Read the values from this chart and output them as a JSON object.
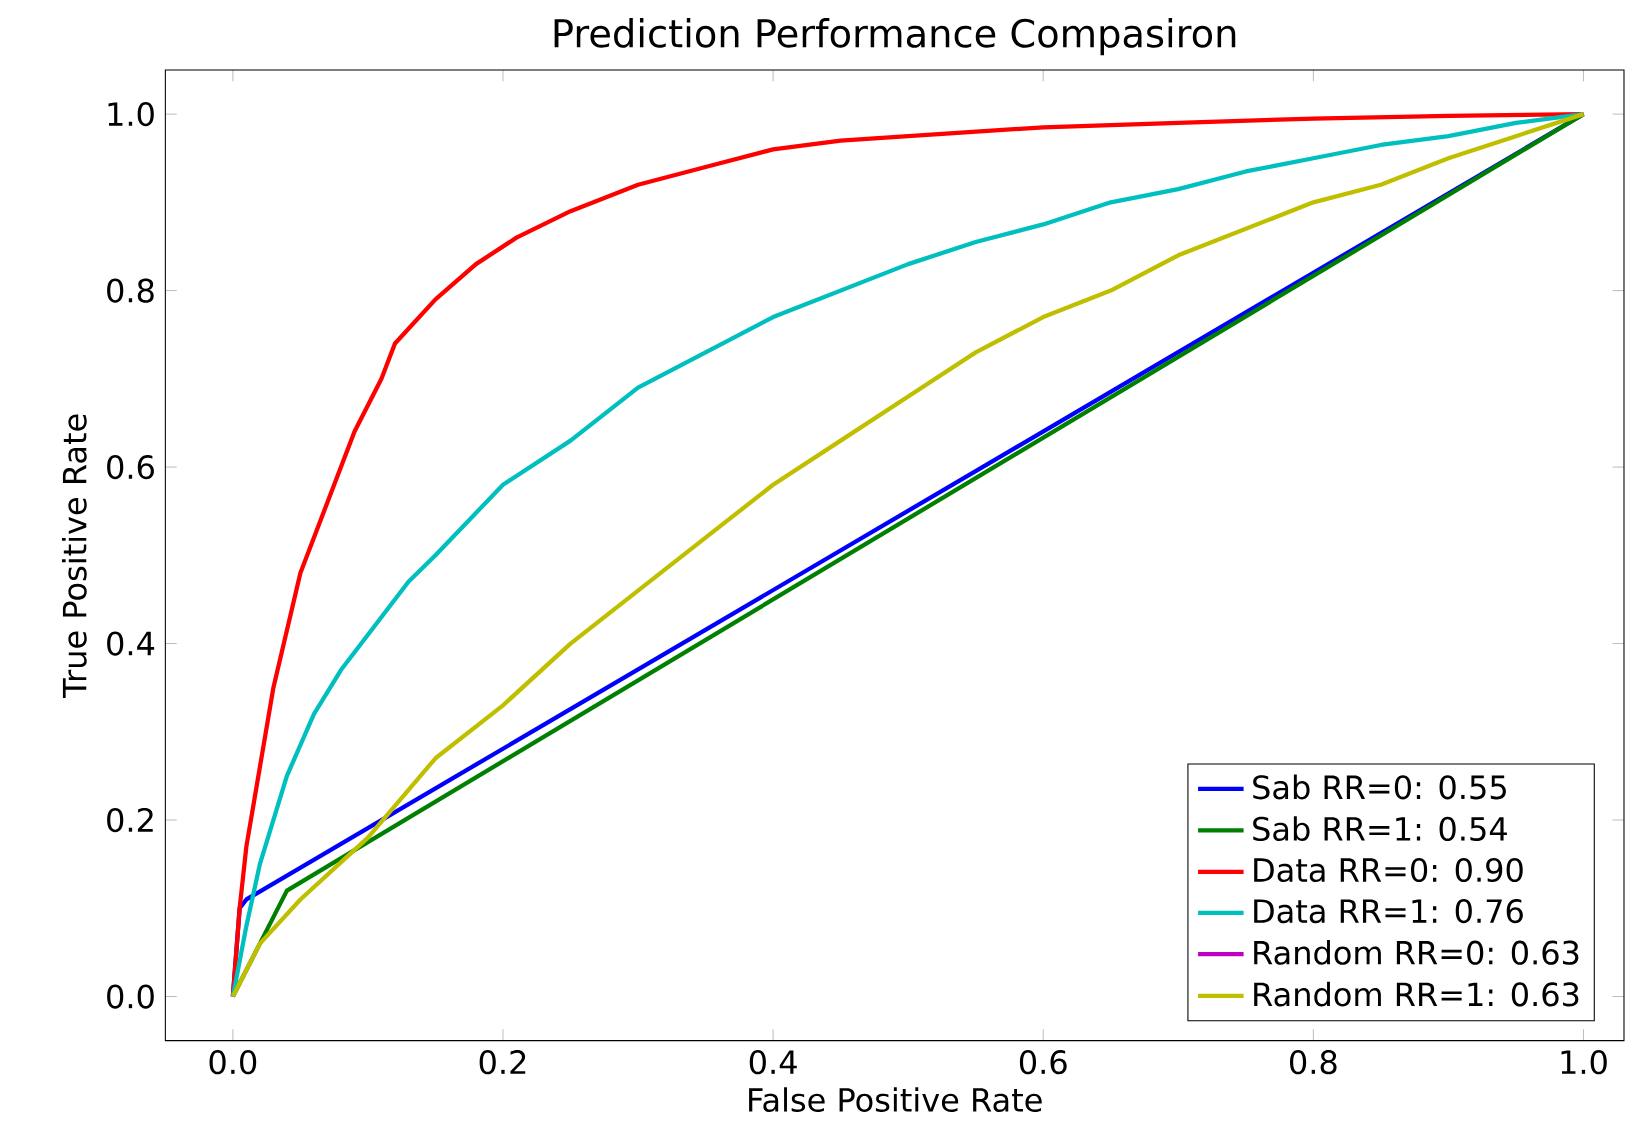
{
  "chart_data": {
    "type": "line",
    "title": "Prediction Performance Compasiron",
    "xlabel": "False Positive Rate",
    "ylabel": "True Positive Rate",
    "xlim": [
      -0.05,
      1.03
    ],
    "ylim": [
      -0.05,
      1.05
    ],
    "xticks": [
      {
        "value": 0,
        "label": "0.0"
      },
      {
        "value": 0.2,
        "label": "0.2"
      },
      {
        "value": 0.4,
        "label": "0.4"
      },
      {
        "value": 0.6,
        "label": "0.6"
      },
      {
        "value": 0.8,
        "label": "0.8"
      },
      {
        "value": 1,
        "label": "1.0"
      }
    ],
    "yticks": [
      {
        "value": 0,
        "label": "0.0"
      },
      {
        "value": 0.2,
        "label": "0.2"
      },
      {
        "value": 0.4,
        "label": "0.4"
      },
      {
        "value": 0.6,
        "label": "0.6"
      },
      {
        "value": 0.8,
        "label": "0.8"
      },
      {
        "value": 1,
        "label": "1.0"
      }
    ],
    "legend": "bottom right",
    "marker": "none",
    "line_style": "solid",
    "grid": false,
    "series": [
      {
        "name": "Sab RR=0: 0.55",
        "color": "#0000ff",
        "x": [
          0,
          0.005,
          0.01,
          1
        ],
        "values": [
          0,
          0.1,
          0.11,
          1
        ]
      },
      {
        "name": "Sab RR=1: 0.54",
        "color": "#008000",
        "x": [
          0,
          0.04,
          1
        ],
        "values": [
          0,
          0.12,
          1
        ]
      },
      {
        "name": "Data RR=0: 0.90",
        "color": "#ff0000",
        "x": [
          0,
          0.005,
          0.01,
          0.02,
          0.03,
          0.05,
          0.07,
          0.09,
          0.11,
          0.12,
          0.15,
          0.18,
          0.21,
          0.25,
          0.3,
          0.35,
          0.4,
          0.45,
          0.5,
          0.6,
          0.7,
          0.8,
          0.9,
          1
        ],
        "values": [
          0,
          0.1,
          0.17,
          0.26,
          0.35,
          0.48,
          0.56,
          0.64,
          0.7,
          0.74,
          0.79,
          0.83,
          0.86,
          0.89,
          0.92,
          0.94,
          0.96,
          0.97,
          0.975,
          0.985,
          0.99,
          0.995,
          0.998,
          1
        ]
      },
      {
        "name": "Data RR=1: 0.76",
        "color": "#00bfbf",
        "x": [
          0,
          0.01,
          0.02,
          0.04,
          0.06,
          0.08,
          0.1,
          0.13,
          0.15,
          0.2,
          0.25,
          0.3,
          0.35,
          0.4,
          0.45,
          0.5,
          0.55,
          0.6,
          0.65,
          0.7,
          0.75,
          0.8,
          0.85,
          0.9,
          0.95,
          1
        ],
        "values": [
          0,
          0.08,
          0.15,
          0.25,
          0.32,
          0.37,
          0.41,
          0.47,
          0.5,
          0.58,
          0.63,
          0.69,
          0.73,
          0.77,
          0.8,
          0.83,
          0.855,
          0.875,
          0.9,
          0.915,
          0.935,
          0.95,
          0.965,
          0.975,
          0.99,
          1
        ]
      },
      {
        "name": "Random RR=0: 0.63",
        "color": "#bf00bf",
        "values": [
          null
        ]
      },
      {
        "name": "Random RR=1: 0.63",
        "color": "#bfbf00",
        "x": [
          0,
          0.02,
          0.05,
          0.1,
          0.15,
          0.2,
          0.25,
          0.3,
          0.35,
          0.4,
          0.45,
          0.5,
          0.55,
          0.6,
          0.65,
          0.7,
          0.75,
          0.8,
          0.85,
          0.9,
          0.95,
          1
        ],
        "values": [
          0,
          0.06,
          0.11,
          0.18,
          0.27,
          0.33,
          0.4,
          0.46,
          0.52,
          0.58,
          0.63,
          0.68,
          0.73,
          0.77,
          0.8,
          0.84,
          0.87,
          0.9,
          0.92,
          0.95,
          0.975,
          1
        ]
      }
    ]
  }
}
